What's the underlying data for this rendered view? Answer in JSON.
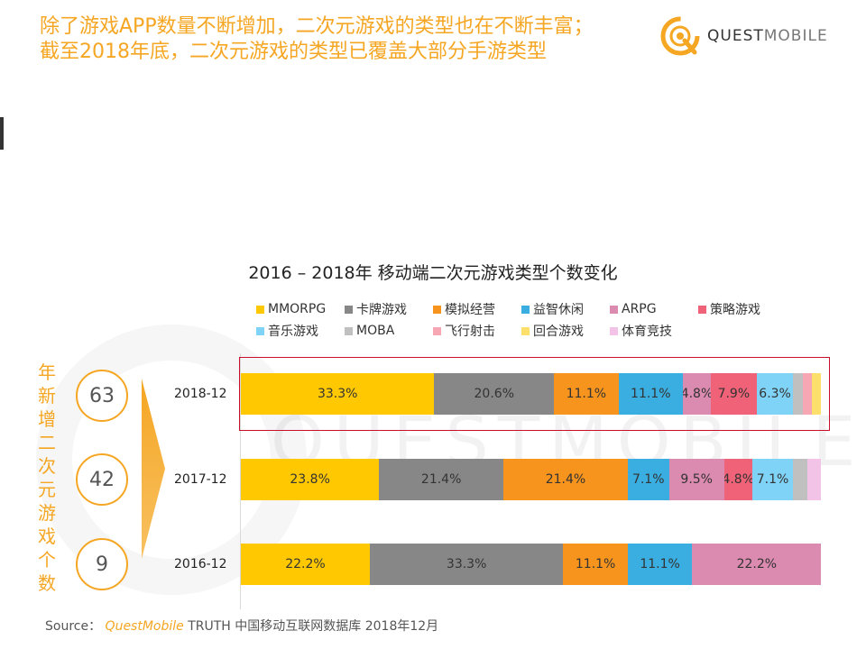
{
  "headline": {
    "line1": "除了游戏APP数量不断增加，二次元游戏的类型也在不断丰富；",
    "line2": "截至2018年底，二次元游戏的类型已覆盖大部分手游类型"
  },
  "logo": {
    "quest": "QUEST",
    "mobile": "MOBILE"
  },
  "watermark": "QUESTMOBILE",
  "vertical_label": [
    "年",
    "新",
    "增",
    "二",
    "次",
    "元",
    "游",
    "戏",
    "个",
    "数"
  ],
  "new_game_counts": [
    {
      "period": "2018-12",
      "count": "63"
    },
    {
      "period": "2017-12",
      "count": "42"
    },
    {
      "period": "2016-12",
      "count": "9"
    }
  ],
  "source": {
    "prefix": "Source：",
    "brand": "QuestMobile",
    "rest": "TRUTH 中国移动互联网数据库 2018年12月"
  },
  "colors": {
    "accent": "#f5a623",
    "highlight_border": "#c8102e"
  },
  "chart_data": {
    "type": "bar",
    "orientation": "horizontal",
    "stacked": true,
    "title": "2016 – 2018年 移动端二次元游戏类型个数变化",
    "xlabel": "",
    "ylabel": "",
    "categories": [
      "2018-12",
      "2017-12",
      "2016-12"
    ],
    "unit": "%",
    "xlim": [
      0,
      100
    ],
    "legend_position": "top",
    "series": [
      {
        "name": "MMORPG",
        "color": "#ffc800",
        "values": [
          33.3,
          23.8,
          22.2
        ],
        "labels": [
          "33.3%",
          "23.8%",
          "22.2%"
        ]
      },
      {
        "name": "卡牌游戏",
        "color": "#878787",
        "values": [
          20.6,
          21.4,
          33.3
        ],
        "labels": [
          "20.6%",
          "21.4%",
          "33.3%"
        ]
      },
      {
        "name": "模拟经营",
        "color": "#f7941d",
        "values": [
          11.1,
          21.4,
          11.1
        ],
        "labels": [
          "11.1%",
          "21.4%",
          "11.1%"
        ]
      },
      {
        "name": "益智休闲",
        "color": "#3aaee0",
        "values": [
          11.1,
          7.1,
          11.1
        ],
        "labels": [
          "11.1%",
          "7.1%",
          "11.1%"
        ]
      },
      {
        "name": "ARPG",
        "color": "#db8ab0",
        "values": [
          4.8,
          9.5,
          22.2
        ],
        "labels": [
          "4.8%",
          "9.5%",
          "22.2%"
        ]
      },
      {
        "name": "策略游戏",
        "color": "#ef6277",
        "values": [
          7.9,
          4.8,
          0
        ],
        "labels": [
          "7.9%",
          "4.8%",
          ""
        ]
      },
      {
        "name": "音乐游戏",
        "color": "#7fd3f7",
        "values": [
          6.3,
          7.1,
          0
        ],
        "labels": [
          "6.3%",
          "7.1%",
          ""
        ]
      },
      {
        "name": "MOBA",
        "color": "#c0c0c0",
        "values": [
          1.6,
          2.4,
          0
        ],
        "labels": [
          "",
          "",
          ""
        ]
      },
      {
        "name": "飞行射击",
        "color": "#f7a6b4",
        "values": [
          1.6,
          0,
          0
        ],
        "labels": [
          "",
          "",
          ""
        ]
      },
      {
        "name": "回合游戏",
        "color": "#fde06b",
        "values": [
          1.6,
          0,
          0
        ],
        "labels": [
          "",
          "",
          ""
        ]
      },
      {
        "name": "体育竞技",
        "color": "#f2c3e6",
        "values": [
          0,
          2.4,
          0
        ],
        "labels": [
          "",
          "",
          ""
        ]
      }
    ]
  }
}
